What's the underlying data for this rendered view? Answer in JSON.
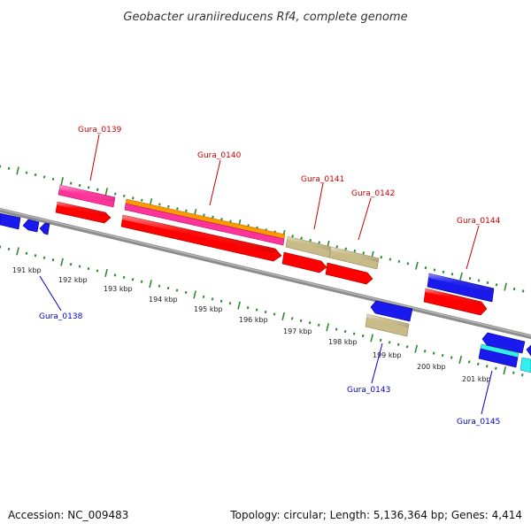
{
  "title": "Geobacter uraniireducens Rf4, complete genome",
  "footer": {
    "accession": "Accession: NC_009483",
    "summary": "Topology: circular; Length: 5,136,364 bp; Genes: 4,414"
  },
  "colors": {
    "backbone": "#8c8c8c",
    "ticks": "#2f8a2f",
    "forward_label": "#cc0000",
    "reverse_label": "#0000cc",
    "red": "#ff0000",
    "magenta": "#ff3399",
    "orange": "#ff9900",
    "khaki": "#c8bb88",
    "blue": "#1a1aee",
    "cyan": "#33eeee"
  },
  "scale": {
    "unit": "kbp",
    "labels": [
      "191 kbp",
      "192 kbp",
      "193 kbp",
      "194 kbp",
      "195 kbp",
      "196 kbp",
      "197 kbp",
      "198 kbp",
      "199 kbp",
      "200 kbp",
      "201 kbp"
    ]
  },
  "gene_labels": {
    "forward": [
      "Gura_0139",
      "Gura_0140",
      "Gura_0141",
      "Gura_0142",
      "Gura_0144"
    ],
    "reverse": [
      "Gura_0138",
      "Gura_0143",
      "Gura_0145"
    ]
  }
}
